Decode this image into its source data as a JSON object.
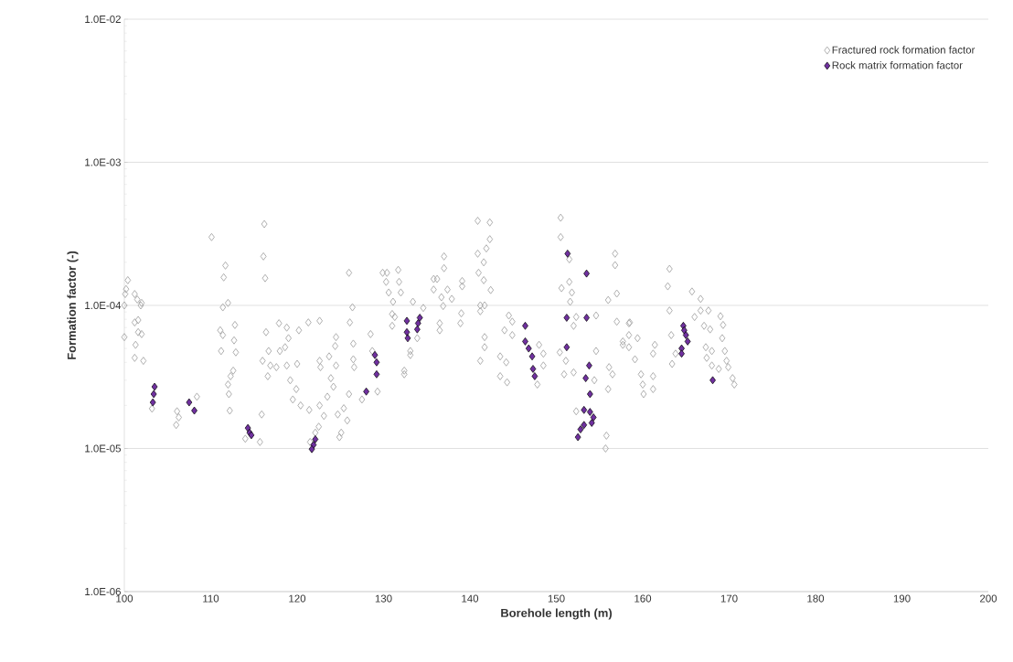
{
  "chart_data": {
    "type": "scatter",
    "xlabel": "Borehole length (m)",
    "ylabel": "Formation factor (-)",
    "xlim": [
      100,
      200
    ],
    "xticks": [
      100,
      110,
      120,
      130,
      140,
      150,
      160,
      170,
      180,
      190,
      200
    ],
    "ylim": [
      1e-06,
      0.01
    ],
    "yticks": [
      {
        "value": 1e-06,
        "label": "1.0E-06"
      },
      {
        "value": 1e-05,
        "label": "1.0E-05"
      },
      {
        "value": 0.0001,
        "label": "1.0E-04"
      },
      {
        "value": 0.001,
        "label": "1.0E-03"
      },
      {
        "value": 0.01,
        "label": "1.0E-02"
      }
    ],
    "log": "y",
    "grid": "y",
    "legend": "top right",
    "marker": "diamond",
    "series": [
      {
        "name": "Fractured rock formation factor",
        "color": "#a6a6a6",
        "x": [
          100.0,
          100.0,
          100.1,
          100.2,
          100.4,
          101.2,
          101.5,
          101.9,
          102.0,
          101.2,
          101.6,
          101.6,
          102.0,
          101.3,
          101.2,
          102.2,
          103.2,
          106.0,
          106.1,
          106.3,
          108.4,
          110.1,
          111.7,
          111.5,
          111.4,
          112.0,
          111.1,
          111.4,
          111.2,
          112.8,
          112.7,
          112.9,
          112.6,
          112.3,
          112.0,
          112.1,
          112.2,
          116.2,
          116.1,
          116.3,
          115.9,
          114.0,
          115.7,
          116.4,
          117.9,
          118.8,
          119.0,
          116.7,
          118.0,
          118.6,
          116.0,
          116.9,
          117.6,
          118.8,
          116.6,
          120.0,
          119.2,
          119.9,
          119.5,
          120.4,
          121.4,
          120.2,
          121.3,
          122.6,
          122.6,
          123.7,
          124.5,
          124.4,
          122.7,
          124.5,
          123.9,
          124.2,
          123.5,
          122.6,
          123.1,
          122.5,
          122.1,
          121.5,
          124.7,
          125.4,
          125.8,
          125.1,
          124.9,
          126.0,
          126.4,
          126.1,
          126.5,
          126.5,
          126.6,
          126.0,
          127.5,
          128.5,
          128.7,
          129.3,
          129.9,
          130.4,
          131.7,
          130.3,
          131.8,
          130.6,
          132.0,
          131.1,
          131.0,
          131.3,
          131.0,
          133.4,
          134.6,
          133.1,
          133.1,
          132.4,
          132.4,
          133.9,
          137.0,
          137.0,
          135.8,
          136.2,
          135.8,
          137.4,
          139.1,
          139.1,
          136.7,
          137.9,
          136.9,
          136.5,
          136.5,
          139.0,
          138.9,
          140.9,
          142.3,
          142.3,
          141.9,
          140.9,
          141.6,
          141.0,
          141.6,
          142.4,
          141.2,
          141.7,
          141.2,
          141.7,
          141.7,
          141.2,
          144.5,
          144.9,
          144.0,
          144.9,
          143.5,
          144.2,
          143.5,
          144.3,
          148.0,
          148.5,
          148.5,
          147.8,
          150.5,
          150.5,
          151.5,
          151.5,
          150.6,
          151.8,
          151.6,
          152.3,
          152.0,
          150.4,
          151.1,
          150.9,
          152.0,
          154.6,
          154.6,
          154.4,
          152.3,
          155.8,
          155.7,
          156.8,
          156.8,
          156.0,
          157.0,
          157.0,
          158.4,
          156.1,
          156.5,
          156.0,
          157.7,
          158.4,
          157.7,
          158.5,
          158.4,
          159.4,
          159.1,
          159.8,
          160.0,
          160.1,
          161.2,
          161.2,
          161.4,
          161.2,
          163.1,
          162.9,
          163.1,
          163.3,
          163.4,
          163.8,
          165.7,
          166.7,
          166.0,
          166.7,
          167.6,
          167.8,
          167.1,
          167.3,
          167.4,
          168.0,
          168.0,
          168.8,
          169.0,
          169.3,
          169.2,
          169.5,
          169.7,
          169.9,
          170.4,
          170.6
        ],
        "values": [
          6e-05,
          0.0001,
          0.00012,
          0.00013,
          0.00015,
          0.00012,
          0.00011,
          0.0001,
          0.000104,
          7.6e-05,
          7.9e-05,
          6.5e-05,
          6.3e-05,
          5.3e-05,
          4.3e-05,
          4.1e-05,
          1.9e-05,
          1.46e-05,
          1.82e-05,
          1.65e-05,
          2.3e-05,
          0.0003,
          0.00019,
          0.000157,
          9.7e-05,
          0.000104,
          6.7e-05,
          6.2e-05,
          4.8e-05,
          7.3e-05,
          5.7e-05,
          4.7e-05,
          3.5e-05,
          3.2e-05,
          2.8e-05,
          2.4e-05,
          1.84e-05,
          0.00037,
          0.00022,
          0.000155,
          1.73e-05,
          1.17e-05,
          1.11e-05,
          6.5e-05,
          7.5e-05,
          7e-05,
          5.9e-05,
          4.8e-05,
          4.8e-05,
          5.1e-05,
          4.1e-05,
          3.8e-05,
          3.7e-05,
          3.8e-05,
          3.2e-05,
          3.9e-05,
          3e-05,
          2.6e-05,
          2.2e-05,
          2e-05,
          1.86e-05,
          6.7e-05,
          7.6e-05,
          7.8e-05,
          4.1e-05,
          4.4e-05,
          6e-05,
          5.2e-05,
          3.7e-05,
          3.8e-05,
          3.1e-05,
          2.7e-05,
          2.3e-05,
          2e-05,
          1.69e-05,
          1.42e-05,
          1.29e-05,
          1.11e-05,
          1.73e-05,
          1.91e-05,
          1.57e-05,
          1.29e-05,
          1.2e-05,
          0.000169,
          9.7e-05,
          7.6e-05,
          5.4e-05,
          4.2e-05,
          3.7e-05,
          2.4e-05,
          2.2e-05,
          6.3e-05,
          4.8e-05,
          2.5e-05,
          0.000169,
          0.000169,
          0.000177,
          0.000146,
          0.000146,
          0.000123,
          0.000123,
          0.000106,
          8.7e-05,
          8.3e-05,
          7.2e-05,
          0.000106,
          9.6e-05,
          4.8e-05,
          4.5e-05,
          3.5e-05,
          3.3e-05,
          5.9e-05,
          0.00022,
          0.000182,
          0.000153,
          0.000153,
          0.000129,
          0.000129,
          0.000148,
          0.000136,
          0.000114,
          0.000111,
          9.9e-05,
          7.5e-05,
          6.7e-05,
          8.8e-05,
          7.5e-05,
          0.00039,
          0.00038,
          0.00029,
          0.00025,
          0.00023,
          0.0002,
          0.000169,
          0.00015,
          0.000128,
          0.0001,
          0.0001,
          9.1e-05,
          6e-05,
          5.1e-05,
          4.1e-05,
          8.5e-05,
          7.7e-05,
          6.7e-05,
          6.2e-05,
          4.4e-05,
          4e-05,
          3.2e-05,
          2.9e-05,
          5.3e-05,
          4.6e-05,
          3.8e-05,
          2.8e-05,
          0.00041,
          0.0003,
          0.00021,
          0.000146,
          0.000132,
          0.000123,
          0.000106,
          8.3e-05,
          7.2e-05,
          4.7e-05,
          4.1e-05,
          3.3e-05,
          3.4e-05,
          8.5e-05,
          4.8e-05,
          3e-05,
          1.82e-05,
          1.23e-05,
          1e-05,
          0.00023,
          0.000191,
          0.000109,
          0.000121,
          7.7e-05,
          7.5e-05,
          3.7e-05,
          3.3e-05,
          2.6e-05,
          5.3e-05,
          5.1e-05,
          5.6e-05,
          7.6e-05,
          6.2e-05,
          5.9e-05,
          4.2e-05,
          3.3e-05,
          2.8e-05,
          2.4e-05,
          2.6e-05,
          3.2e-05,
          5.3e-05,
          4.6e-05,
          0.00018,
          0.000136,
          9.2e-05,
          6.2e-05,
          3.9e-05,
          4.6e-05,
          0.000125,
          0.000111,
          8.3e-05,
          9.2e-05,
          9.2e-05,
          6.8e-05,
          7.2e-05,
          5.1e-05,
          4.3e-05,
          4.8e-05,
          3.8e-05,
          3.6e-05,
          8.4e-05,
          7.3e-05,
          5.9e-05,
          4.8e-05,
          4.1e-05,
          3.7e-05,
          3.1e-05,
          2.8e-05
        ]
      },
      {
        "name": "Rock matrix formation factor",
        "color": "#7030a0",
        "x": [
          103.5,
          103.4,
          103.3,
          107.5,
          108.1,
          114.3,
          114.5,
          114.7,
          122.1,
          121.9,
          121.7,
          128.0,
          129.0,
          129.2,
          129.2,
          132.7,
          132.7,
          132.8,
          134.2,
          134.0,
          133.9,
          146.4,
          146.4,
          146.8,
          147.2,
          147.3,
          147.5,
          151.3,
          153.5,
          151.2,
          153.5,
          151.2,
          153.8,
          153.4,
          153.9,
          153.2,
          153.9,
          154.3,
          154.1,
          153.2,
          152.8,
          152.5,
          164.7,
          164.8,
          165.0,
          165.2,
          164.5,
          164.5,
          168.1
        ],
        "values": [
          2.7e-05,
          2.4e-05,
          2.1e-05,
          2.1e-05,
          1.84e-05,
          1.39e-05,
          1.29e-05,
          1.24e-05,
          1.16e-05,
          1.06e-05,
          9.9e-06,
          2.5e-05,
          4.5e-05,
          4e-05,
          3.3e-05,
          7.8e-05,
          6.5e-05,
          5.9e-05,
          8.2e-05,
          7.5e-05,
          6.8e-05,
          7.2e-05,
          5.6e-05,
          5e-05,
          4.4e-05,
          3.6e-05,
          3.2e-05,
          0.00023,
          0.000167,
          8.2e-05,
          8.2e-05,
          5.1e-05,
          3.8e-05,
          3.1e-05,
          2.4e-05,
          1.86e-05,
          1.8e-05,
          1.65e-05,
          1.51e-05,
          1.46e-05,
          1.36e-05,
          1.2e-05,
          7.2e-05,
          6.7e-05,
          6.2e-05,
          5.6e-05,
          5e-05,
          4.6e-05,
          3e-05
        ]
      }
    ]
  }
}
